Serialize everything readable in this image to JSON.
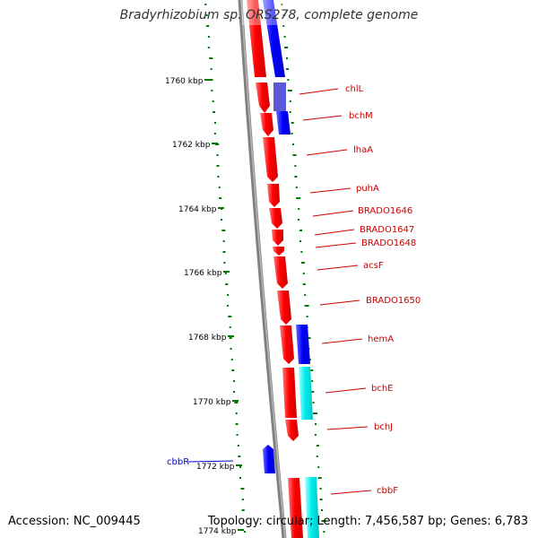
{
  "title": "Bradyrhizobium sp. ORS278, complete genome",
  "footer": {
    "accession": "Accession: NC_009445",
    "topology": "Topology: circular; Length: 7,456,587 bp; Genes: 6,783"
  },
  "colors": {
    "forward_gene": "#ff0000",
    "reverse_gene": "#0000ff",
    "cyan_gene": "#00e5e5",
    "backbone": "#808080",
    "gc_skew_ticks": "#007700",
    "label_line_red": "#cc0000",
    "label_line_blue": "#0000cc"
  },
  "scale_labels": [
    "1760 kbp",
    "1762 kbp",
    "1764 kbp",
    "1766 kbp",
    "1768 kbp",
    "1770 kbp",
    "1772 kbp",
    "1774 kbp"
  ],
  "gene_labels": [
    {
      "name": "chlL",
      "color": "red"
    },
    {
      "name": "bchM",
      "color": "red"
    },
    {
      "name": "lhaA",
      "color": "red"
    },
    {
      "name": "puhA",
      "color": "red"
    },
    {
      "name": "BRADO1646",
      "color": "red"
    },
    {
      "name": "BRADO1647",
      "color": "red"
    },
    {
      "name": "BRADO1648",
      "color": "red"
    },
    {
      "name": "acsF",
      "color": "red"
    },
    {
      "name": "BRADO1650",
      "color": "red"
    },
    {
      "name": "hemA",
      "color": "red"
    },
    {
      "name": "bchE",
      "color": "red"
    },
    {
      "name": "bchJ",
      "color": "red"
    },
    {
      "name": "cbbF",
      "color": "red"
    },
    {
      "name": "cbbR",
      "color": "blue"
    }
  ]
}
